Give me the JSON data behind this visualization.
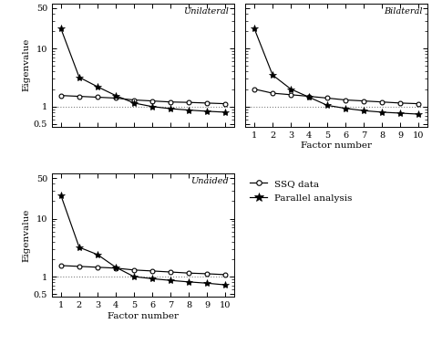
{
  "x": [
    1,
    2,
    3,
    4,
    5,
    6,
    7,
    8,
    9,
    10
  ],
  "unilateral_ssq": [
    1.55,
    1.5,
    1.45,
    1.4,
    1.3,
    1.25,
    1.2,
    1.18,
    1.15,
    1.12
  ],
  "unilateral_parallel": [
    22,
    3.2,
    2.2,
    1.55,
    1.15,
    1.0,
    0.92,
    0.87,
    0.83,
    0.8
  ],
  "bilateral_ssq": [
    2.0,
    1.7,
    1.6,
    1.5,
    1.4,
    1.3,
    1.25,
    1.2,
    1.15,
    1.12
  ],
  "bilateral_parallel": [
    22,
    3.5,
    2.0,
    1.45,
    1.05,
    0.93,
    0.85,
    0.8,
    0.77,
    0.74
  ],
  "unaided_ssq": [
    1.55,
    1.5,
    1.45,
    1.4,
    1.3,
    1.25,
    1.2,
    1.15,
    1.12,
    1.08
  ],
  "unaided_parallel": [
    25,
    3.2,
    2.4,
    1.45,
    1.0,
    0.92,
    0.86,
    0.81,
    0.77,
    0.72
  ],
  "ylim_top": 60,
  "ylim_bottom": 0.45,
  "yticks": [
    0.5,
    1.0,
    10.0,
    50.0
  ],
  "yticklabels": [
    "0.5",
    "1",
    "10",
    "50"
  ],
  "xticks": [
    1,
    2,
    3,
    4,
    5,
    6,
    7,
    8,
    9,
    10
  ],
  "line_color": "#000000",
  "hline_y": 1.0,
  "label_ssq": "SSQ data",
  "label_parallel": "Parallel analysis",
  "subplot_labels": [
    "Unilateral",
    "Bilateral",
    "Unaided"
  ],
  "xlabel": "Factor number",
  "ylabel": "Eigenvalue"
}
